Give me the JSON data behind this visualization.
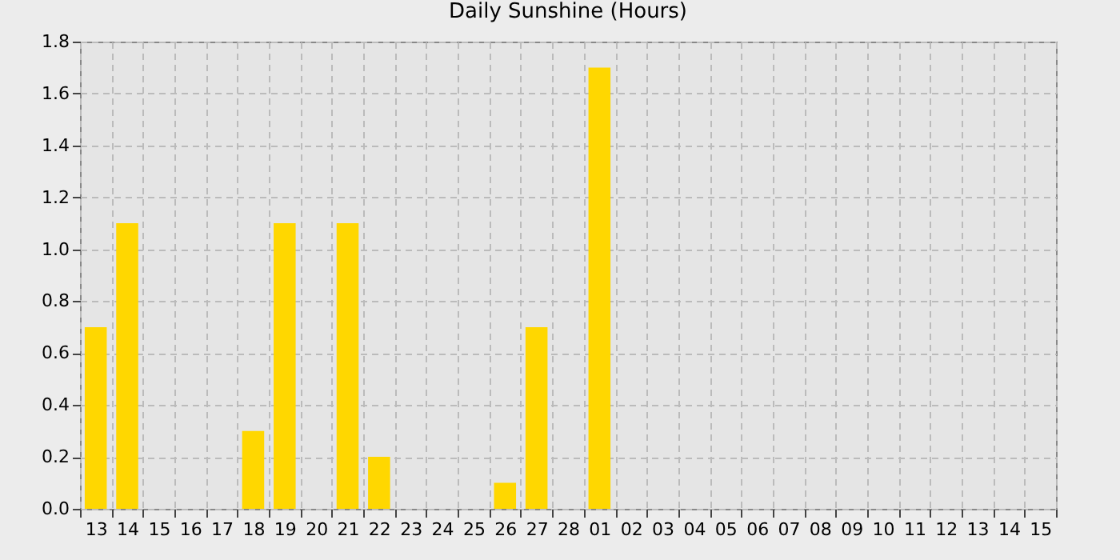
{
  "chart_data": {
    "type": "bar",
    "title": "Daily Sunshine (Hours)",
    "categories": [
      "13",
      "14",
      "15",
      "16",
      "17",
      "18",
      "19",
      "20",
      "21",
      "22",
      "23",
      "24",
      "25",
      "26",
      "27",
      "28",
      "01",
      "02",
      "03",
      "04",
      "05",
      "06",
      "07",
      "08",
      "09",
      "10",
      "11",
      "12",
      "13",
      "14",
      "15"
    ],
    "values": [
      0.7,
      1.1,
      0,
      0,
      0,
      0.3,
      1.1,
      0,
      1.1,
      0.2,
      0,
      0,
      0,
      0.1,
      0.7,
      0,
      1.7,
      0,
      0,
      0,
      0,
      0,
      0,
      0,
      0,
      0,
      0,
      0,
      0,
      0,
      0
    ],
    "color": "#ffd700",
    "ylim": [
      0,
      1.8
    ],
    "yticks": [
      {
        "value": 0,
        "label": "0.0"
      },
      0.2,
      0.4,
      0.6,
      0.8,
      {
        "value": 1,
        "label": "1.0"
      },
      1.2,
      1.4,
      1.6,
      1.8
    ],
    "grid": true
  }
}
